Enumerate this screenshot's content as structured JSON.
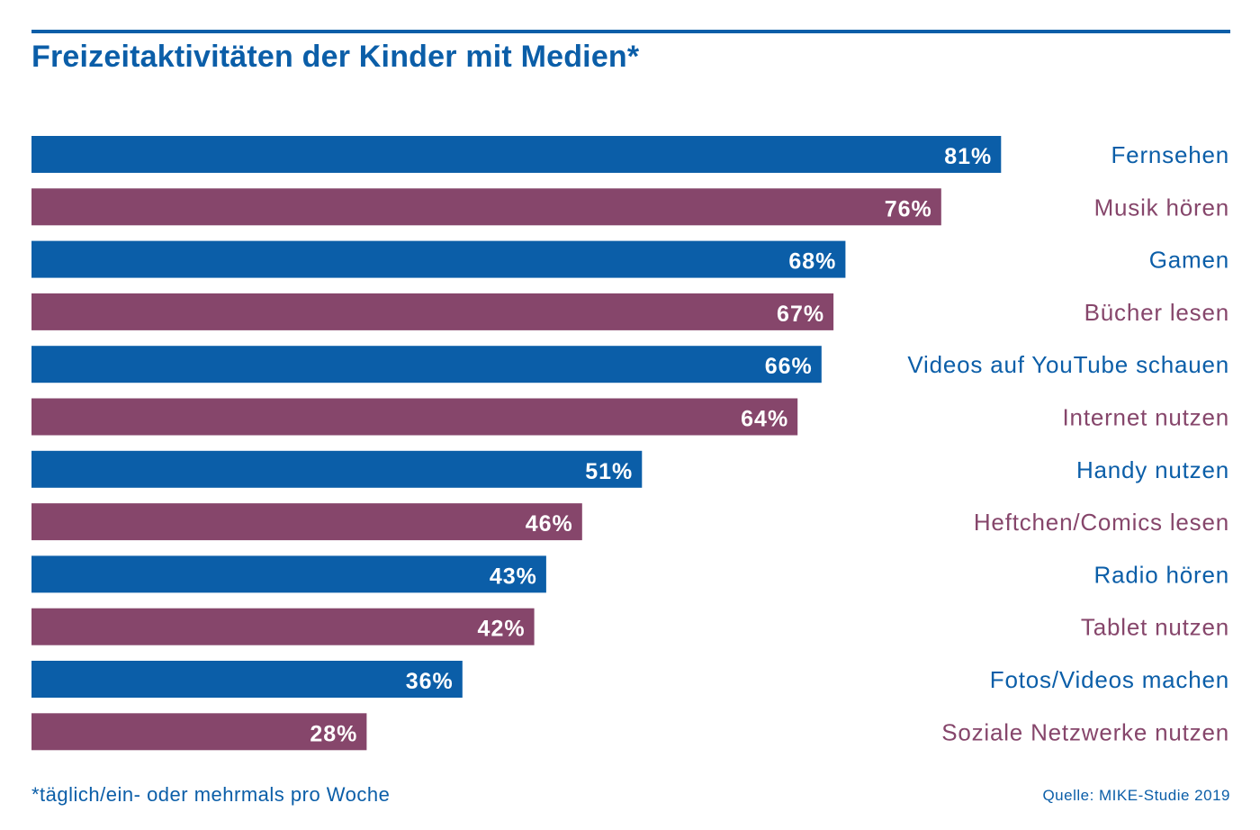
{
  "colors": {
    "blue": "#0b5ea8",
    "purple": "#86466b",
    "value_text": "#ffffff"
  },
  "chart_data": {
    "type": "bar",
    "orientation": "horizontal",
    "title": "Freizeitaktivitäten der Kinder mit Medien*",
    "categories": [
      "Fernsehen",
      "Musik hören",
      "Gamen",
      "Bücher lesen",
      "Videos auf YouTube schauen",
      "Internet nutzen",
      "Handy nutzen",
      "Heftchen/Comics lesen",
      "Radio hören",
      "Tablet nutzen",
      "Fotos/Videos machen",
      "Soziale Netzwerke nutzen"
    ],
    "values": [
      81,
      76,
      68,
      67,
      66,
      64,
      51,
      46,
      43,
      42,
      36,
      28
    ],
    "value_labels": [
      "81%",
      "76%",
      "68%",
      "67%",
      "66%",
      "64%",
      "51%",
      "46%",
      "43%",
      "42%",
      "36%",
      "28%"
    ],
    "xlim": [
      0,
      100
    ],
    "grid": false,
    "legend": "none",
    "bar_colors": [
      "blue",
      "purple",
      "blue",
      "purple",
      "blue",
      "purple",
      "blue",
      "purple",
      "blue",
      "purple",
      "blue",
      "purple"
    ],
    "footnote": "*täglich/ein- oder mehrmals pro Woche",
    "source": "Quelle: MIKE-Studie 2019"
  }
}
